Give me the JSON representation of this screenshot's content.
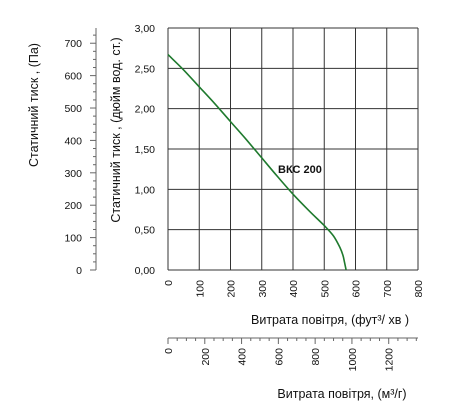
{
  "chart_data": {
    "type": "line",
    "series": [
      {
        "name": "ВКС 200",
        "color": "#1f7a2e",
        "x": [
          0,
          50,
          100,
          150,
          200,
          250,
          300,
          350,
          400,
          450,
          500,
          530,
          550,
          560,
          565,
          570
        ],
        "y": [
          2.67,
          2.48,
          2.27,
          2.06,
          1.84,
          1.62,
          1.39,
          1.16,
          0.94,
          0.74,
          0.55,
          0.42,
          0.28,
          0.18,
          0.09,
          0.0
        ]
      }
    ],
    "x_axes": [
      {
        "title": "Витрата повітря, (фут³/ хв )",
        "range": [
          0,
          800
        ],
        "ticks": [
          "0",
          "100",
          "200",
          "300",
          "400",
          "500",
          "600",
          "700",
          "800"
        ],
        "grid": true
      },
      {
        "title": "Витрата повітря, (м³/г)",
        "range": [
          0,
          1359.2
        ],
        "ticks": [
          "0",
          "200",
          "400",
          "600",
          "800",
          "1000",
          "1200"
        ]
      }
    ],
    "y_axes": [
      {
        "title": "Статичний тиск , (дюйм вод. ст.)",
        "range": [
          0,
          3.0
        ],
        "ticks": [
          "0,00",
          "0,50",
          "1,00",
          "1,50",
          "2,00",
          "2,50",
          "3,00"
        ],
        "grid": true
      },
      {
        "title": "Статичний тиск , (Па)",
        "range": [
          0,
          747
        ],
        "ticks": [
          "0",
          "100",
          "200",
          "300",
          "400",
          "500",
          "600",
          "700"
        ]
      }
    ]
  }
}
